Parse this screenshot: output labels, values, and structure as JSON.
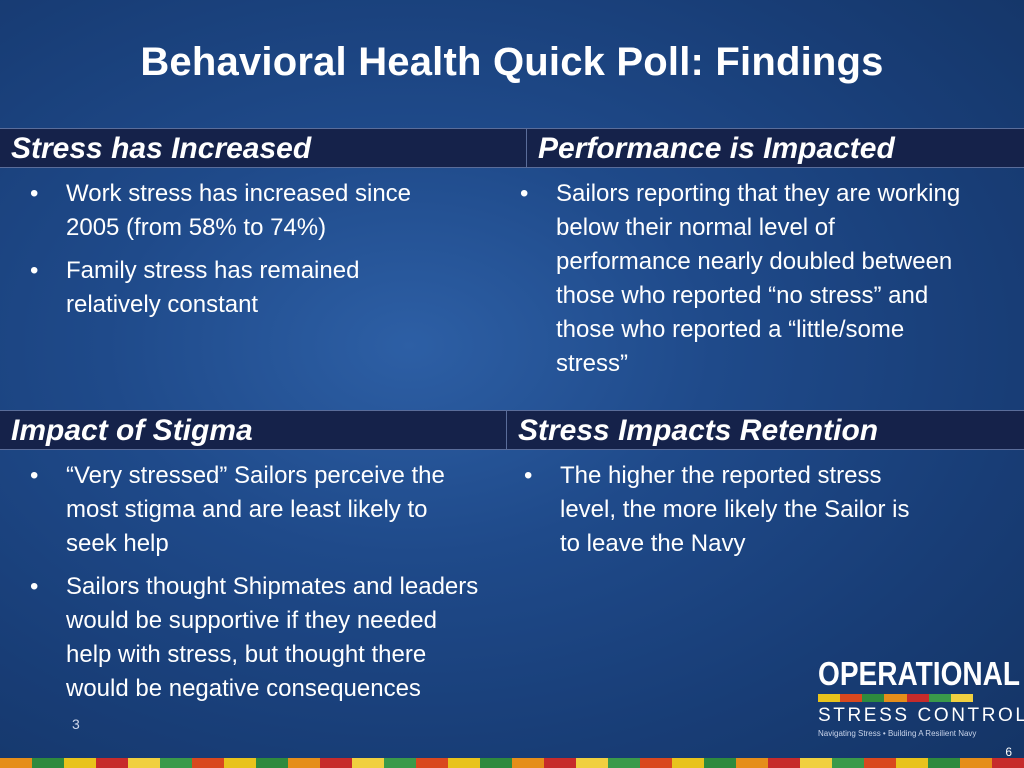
{
  "slide": {
    "title": "Behavioral Health Quick Poll: Findings",
    "page_number": "6",
    "fragment": "3"
  },
  "sections": {
    "stress_increased": {
      "heading": "Stress has Increased",
      "bullets": [
        "Work stress has increased since 2005 (from 58% to 74%)",
        "Family stress has remained relatively constant"
      ]
    },
    "performance": {
      "heading": "Performance is Impacted",
      "bullets": [
        "Sailors reporting that they are working below their normal level of performance nearly doubled between those who reported “no stress” and those who reported a “little/some stress”"
      ]
    },
    "stigma": {
      "heading": "Impact of Stigma",
      "bullets": [
        "“Very stressed” Sailors perceive the most stigma and are least likely to seek help",
        "Sailors thought Shipmates and leaders would be supportive if they needed help with stress, but thought there would be negative consequences"
      ]
    },
    "retention": {
      "heading": "Stress Impacts Retention",
      "bullets": [
        "The higher the reported stress level, the more likely the Sailor is to leave the Navy"
      ]
    }
  },
  "logo": {
    "line1": "OPERATIONAL",
    "line2": "STRESS CONTROL",
    "tagline": "Navigating Stress  •  Building A Resilient Navy"
  },
  "colors": {
    "background": "#1f4a8a",
    "header_bar": "#15224a",
    "stripe": [
      "#e8c31c",
      "#d9481e",
      "#2e8a3e",
      "#e58e1a",
      "#c62b2b",
      "#3a9a4a",
      "#f0d040"
    ]
  }
}
